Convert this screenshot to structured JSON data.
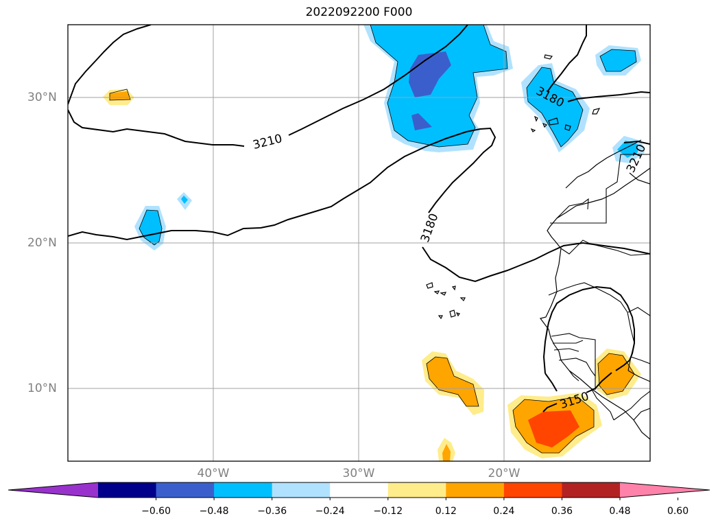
{
  "title": "2022092200 F000",
  "lat_labels": [
    "30°N",
    "20°N",
    "10°N"
  ],
  "lon_labels": [
    "40°W",
    "30°W",
    "20°W"
  ],
  "contour_labels": [
    "3210",
    "3180",
    "3180",
    "3150",
    "3210"
  ],
  "colorbar": {
    "ticks": [
      "−0.60",
      "−0.48",
      "−0.36",
      "−0.24",
      "−0.12",
      "0.12",
      "0.24",
      "0.36",
      "0.48",
      "0.60"
    ],
    "colors": [
      "#9932cc",
      "#00008b",
      "#3a5fcd",
      "#00bfff",
      "#b0e2ff",
      "#ffffff",
      "#ffec8b",
      "#ffa500",
      "#ff4500",
      "#b22222",
      "#ff82ab"
    ]
  }
}
